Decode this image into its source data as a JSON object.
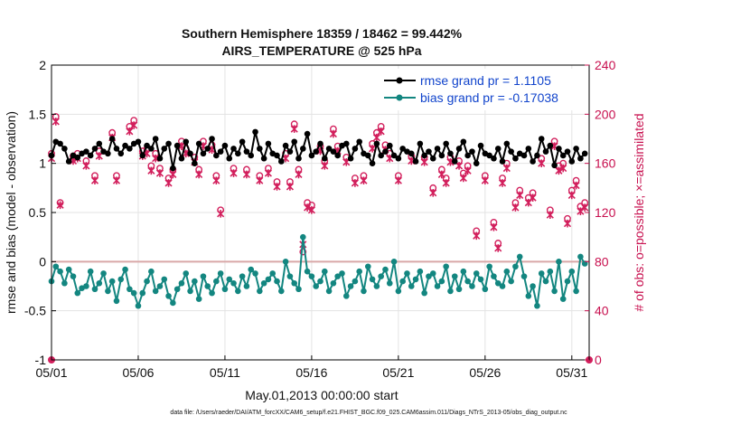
{
  "chart_data": {
    "type": "line",
    "title": [
      "Southern Hemisphere 18359 / 18462 = 99.442%",
      "AIRS_TEMPERATURE @ 525 hPa"
    ],
    "xlabel": "May.01,2013 00:00:00 start",
    "ylabel": "rmse and bias (model - observation)",
    "ylabel_right": "# of obs: o=possible; ×=assimilated",
    "footnote": "data file: /Users/raeder/DAI/ATM_forcXX/CAM6_setup/f.e21.FHIST_BGC.f09_025.CAM6assim.011/Diags_NTrS_2013-05/obs_diag_output.nc",
    "xlim": [
      0,
      124
    ],
    "ylim": [
      -1,
      2
    ],
    "ylim_right": [
      0,
      240
    ],
    "x_ticks": [
      0,
      20,
      40,
      60,
      80,
      100,
      120
    ],
    "x_tick_labels": [
      "05/01",
      "05/06",
      "05/11",
      "05/16",
      "05/21",
      "05/26",
      "05/31"
    ],
    "y_ticks": [
      -1,
      -0.5,
      0,
      0.5,
      1,
      1.5,
      2
    ],
    "y_tick_labels": [
      "-1",
      "-0.5",
      "0",
      "0.5",
      "1",
      "1.5",
      "2"
    ],
    "y_right_ticks": [
      0,
      40,
      80,
      120,
      160,
      200,
      240
    ],
    "y_right_tick_labels": [
      "0",
      "40",
      "80",
      "120",
      "160",
      "200",
      "240"
    ],
    "x": [
      0,
      1,
      2,
      3,
      4,
      5,
      6,
      7,
      8,
      9,
      10,
      11,
      12,
      13,
      14,
      15,
      16,
      17,
      18,
      19,
      20,
      21,
      22,
      23,
      24,
      25,
      26,
      27,
      28,
      29,
      30,
      31,
      32,
      33,
      34,
      35,
      36,
      37,
      38,
      39,
      40,
      41,
      42,
      43,
      44,
      45,
      46,
      47,
      48,
      49,
      50,
      51,
      52,
      53,
      54,
      55,
      56,
      57,
      58,
      59,
      60,
      61,
      62,
      63,
      64,
      65,
      66,
      67,
      68,
      69,
      70,
      71,
      72,
      73,
      74,
      75,
      76,
      77,
      78,
      79,
      80,
      81,
      82,
      83,
      84,
      85,
      86,
      87,
      88,
      89,
      90,
      91,
      92,
      93,
      94,
      95,
      96,
      97,
      98,
      99,
      100,
      101,
      102,
      103,
      104,
      105,
      106,
      107,
      108,
      109,
      110,
      111,
      112,
      113,
      114,
      115,
      116,
      117,
      118,
      119,
      120,
      121,
      122,
      123
    ],
    "series": [
      {
        "name": "rmse grand pr = 1.1105",
        "color": "#000000",
        "axis": "left",
        "values": [
          1.08,
          1.22,
          1.2,
          1.15,
          1.02,
          1.08,
          1.06,
          1.1,
          1.12,
          1.08,
          1.15,
          1.2,
          1.12,
          1.1,
          1.25,
          1.15,
          1.1,
          1.18,
          1.15,
          1.2,
          1.22,
          1.08,
          1.18,
          1.15,
          1.25,
          1.05,
          1.15,
          1.2,
          0.95,
          1.18,
          1.05,
          1.22,
          1.1,
          1.0,
          1.2,
          1.1,
          1.15,
          1.25,
          1.08,
          1.12,
          1.18,
          1.05,
          1.15,
          1.1,
          1.22,
          1.12,
          1.08,
          1.32,
          1.15,
          1.05,
          1.2,
          1.1,
          1.08,
          1.02,
          1.18,
          1.12,
          1.22,
          1.05,
          1.15,
          1.3,
          1.08,
          1.12,
          1.2,
          1.05,
          1.15,
          1.12,
          1.08,
          1.18,
          1.2,
          1.05,
          1.15,
          1.22,
          1.1,
          1.08,
          1.0,
          1.2,
          1.08,
          1.12,
          1.18,
          1.08,
          1.05,
          1.15,
          1.12,
          1.1,
          1.02,
          1.2,
          1.08,
          1.12,
          1.05,
          1.15,
          1.08,
          1.2,
          1.1,
          1.02,
          1.15,
          1.22,
          1.08,
          1.12,
          1.0,
          1.18,
          1.1,
          1.08,
          1.05,
          1.15,
          1.02,
          1.2,
          1.12,
          1.05,
          1.1,
          1.08,
          1.15,
          1.02,
          1.08,
          1.25,
          1.12,
          1.18,
          0.98,
          1.15,
          1.08,
          1.12,
          1.02,
          1.15,
          1.05,
          1.1
        ]
      },
      {
        "name": "bias grand pr = -0.17038",
        "color": "#138680",
        "axis": "left",
        "values": [
          -0.2,
          -0.05,
          -0.1,
          -0.22,
          -0.08,
          -0.15,
          -0.32,
          -0.27,
          -0.25,
          -0.1,
          -0.28,
          -0.22,
          -0.12,
          -0.3,
          -0.2,
          -0.4,
          -0.18,
          -0.08,
          -0.28,
          -0.32,
          -0.45,
          -0.32,
          -0.2,
          -0.1,
          -0.3,
          -0.25,
          -0.18,
          -0.35,
          -0.42,
          -0.28,
          -0.22,
          -0.12,
          -0.3,
          -0.2,
          -0.38,
          -0.15,
          -0.25,
          -0.32,
          -0.2,
          -0.12,
          -0.28,
          -0.18,
          -0.22,
          -0.3,
          -0.15,
          -0.25,
          -0.08,
          -0.12,
          -0.3,
          -0.22,
          -0.18,
          -0.12,
          -0.2,
          -0.3,
          0.0,
          -0.15,
          -0.22,
          -0.28,
          0.25,
          -0.1,
          -0.15,
          -0.25,
          -0.2,
          -0.1,
          -0.3,
          -0.22,
          -0.15,
          -0.12,
          -0.35,
          -0.25,
          -0.2,
          -0.1,
          -0.3,
          -0.05,
          -0.18,
          -0.25,
          -0.15,
          -0.08,
          -0.22,
          0.0,
          -0.3,
          -0.2,
          -0.12,
          -0.25,
          -0.18,
          -0.1,
          -0.32,
          -0.15,
          -0.12,
          -0.25,
          -0.2,
          -0.05,
          -0.3,
          -0.15,
          -0.28,
          -0.1,
          -0.2,
          -0.25,
          -0.12,
          -0.18,
          -0.28,
          -0.05,
          -0.15,
          -0.22,
          -0.25,
          -0.1,
          -0.2,
          -0.05,
          0.05,
          -0.15,
          -0.35,
          -0.25,
          -0.45,
          -0.12,
          -0.2,
          -0.1,
          -0.3,
          0.0,
          -0.38,
          -0.2,
          -0.1,
          -0.3,
          0.05,
          -0.02
        ]
      }
    ],
    "obs_possible": {
      "color": "#d21f5c",
      "axis": "right",
      "x": [
        0,
        1,
        2,
        5,
        6,
        8,
        10,
        11,
        14,
        15,
        18,
        19,
        21,
        22,
        23,
        24,
        25,
        27,
        28,
        30,
        31,
        33,
        34,
        35,
        37,
        38,
        39,
        42,
        45,
        48,
        50,
        52,
        54,
        55,
        56,
        57,
        58,
        59,
        60,
        62,
        63,
        65,
        66,
        68,
        70,
        72,
        74,
        75,
        76,
        77,
        78,
        80,
        83,
        86,
        88,
        90,
        91,
        92,
        94,
        95,
        96,
        98,
        100,
        102,
        103,
        104,
        105,
        107,
        108,
        110,
        111,
        113,
        115,
        116,
        117,
        118,
        119,
        120,
        121,
        122,
        123
      ],
      "values": [
        168,
        198,
        128,
        166,
        168,
        162,
        150,
        170,
        185,
        150,
        190,
        195,
        170,
        172,
        158,
        168,
        156,
        148,
        155,
        178,
        172,
        165,
        155,
        178,
        175,
        150,
        122,
        156,
        155,
        150,
        156,
        145,
        168,
        145,
        192,
        155,
        88,
        128,
        126,
        174,
        162,
        188,
        174,
        165,
        148,
        150,
        176,
        185,
        190,
        175,
        168,
        150,
        166,
        165,
        140,
        155,
        148,
        165,
        162,
        152,
        158,
        105,
        150,
        112,
        95,
        148,
        160,
        128,
        138,
        132,
        136,
        164,
        122,
        178,
        158,
        160,
        115,
        138,
        146,
        125,
        128
      ]
    },
    "obs_assimilated": {
      "color": "#d21f5c",
      "axis": "right",
      "x": [
        0,
        1,
        2,
        5,
        6,
        8,
        10,
        11,
        14,
        15,
        18,
        19,
        21,
        22,
        23,
        24,
        25,
        27,
        28,
        30,
        31,
        33,
        34,
        35,
        37,
        38,
        39,
        42,
        45,
        48,
        50,
        52,
        54,
        55,
        56,
        57,
        58,
        59,
        60,
        62,
        63,
        65,
        66,
        68,
        70,
        72,
        74,
        75,
        76,
        77,
        78,
        80,
        83,
        86,
        88,
        90,
        91,
        92,
        94,
        95,
        96,
        98,
        100,
        102,
        103,
        104,
        105,
        107,
        108,
        110,
        111,
        113,
        115,
        116,
        117,
        118,
        119,
        120,
        121,
        122,
        123
      ],
      "values": [
        164,
        194,
        126,
        162,
        164,
        158,
        146,
        166,
        181,
        146,
        186,
        191,
        166,
        168,
        154,
        164,
        152,
        144,
        151,
        174,
        168,
        161,
        151,
        174,
        171,
        146,
        119,
        152,
        151,
        146,
        152,
        141,
        164,
        141,
        188,
        151,
        94,
        124,
        122,
        170,
        158,
        184,
        170,
        161,
        144,
        146,
        172,
        181,
        186,
        171,
        164,
        146,
        162,
        161,
        136,
        151,
        144,
        161,
        158,
        148,
        154,
        101,
        146,
        108,
        91,
        144,
        156,
        124,
        134,
        128,
        132,
        160,
        118,
        174,
        154,
        156,
        111,
        134,
        142,
        121,
        124
      ]
    }
  },
  "legend": {
    "rmse_label": "rmse grand pr = 1.1105",
    "bias_label": "bias grand pr = -0.17038"
  }
}
